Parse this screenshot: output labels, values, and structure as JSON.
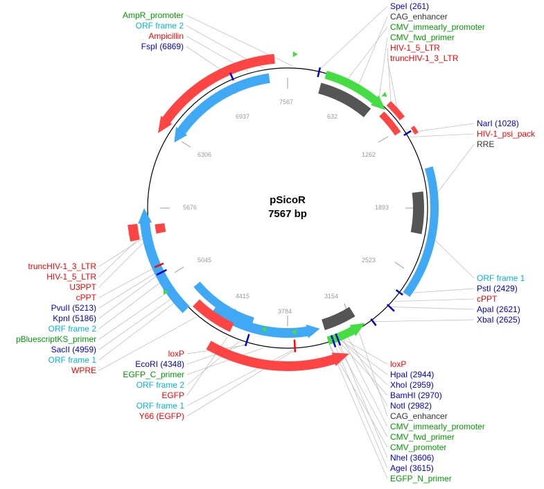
{
  "title": "pSicoR",
  "subtitle": "7567 bp",
  "colors": {
    "red": "#ff0000",
    "blue": "#0000cc",
    "green": "#009900",
    "cyan": "#00b5d8",
    "dark": "#333333",
    "feature_red": "#ff4444",
    "feature_blue": "#3fa9f5",
    "feature_green": "#44dd44",
    "feature_gray": "#555555"
  },
  "ticks": [
    "632",
    "1262",
    "1893",
    "2523",
    "3154",
    "3784",
    "4415",
    "5045",
    "5676",
    "6306",
    "6937",
    "7567"
  ],
  "labels_top_left": [
    {
      "text": "AmpR_promoter",
      "color": "green"
    },
    {
      "text": "ORF frame 2",
      "color": "cyan"
    },
    {
      "text": "Ampicillin",
      "color": "red"
    },
    {
      "text": "FspI (6869)",
      "color": "blue"
    }
  ],
  "labels_top_right": [
    {
      "text": "SpeI (261)",
      "color": "blue"
    },
    {
      "text": "CAG_enhancer",
      "color": "dark"
    },
    {
      "text": "CMV_immearly_promoter",
      "color": "green"
    },
    {
      "text": "CMV_fwd_primer",
      "color": "green"
    },
    {
      "text": "HIV-1_5_LTR",
      "color": "red"
    },
    {
      "text": "truncHIV-1_3_LTR",
      "color": "red"
    }
  ],
  "labels_right_mid": [
    {
      "text": "NarI (1028)",
      "color": "blue"
    },
    {
      "text": "HIV-1_psi_pack",
      "color": "red"
    },
    {
      "text": "RRE",
      "color": "dark"
    }
  ],
  "labels_right_low": [
    {
      "text": "ORF frame 1",
      "color": "cyan"
    },
    {
      "text": "PstI (2429)",
      "color": "blue"
    },
    {
      "text": "cPPT",
      "color": "red"
    },
    {
      "text": "ApaI (2621)",
      "color": "blue"
    },
    {
      "text": "XbaI (2625)",
      "color": "blue"
    }
  ],
  "labels_left": [
    {
      "text": "truncHIV-1_3_LTR",
      "color": "red"
    },
    {
      "text": "HIV-1_5_LTR",
      "color": "red"
    },
    {
      "text": "U3PPT",
      "color": "red"
    },
    {
      "text": "cPPT",
      "color": "red"
    },
    {
      "text": "PvuII (5213)",
      "color": "blue"
    },
    {
      "text": "KpnI (5186)",
      "color": "blue"
    },
    {
      "text": "ORF frame 2",
      "color": "cyan"
    },
    {
      "text": "pBluescriptKS_primer",
      "color": "green"
    },
    {
      "text": "SacII (4959)",
      "color": "blue"
    },
    {
      "text": "ORF frame 1",
      "color": "cyan"
    },
    {
      "text": "WPRE",
      "color": "red"
    }
  ],
  "labels_bottom_left": [
    {
      "text": "loxP",
      "color": "red"
    },
    {
      "text": "EcoRI (4348)",
      "color": "blue"
    },
    {
      "text": "EGFP_C_primer",
      "color": "green"
    },
    {
      "text": "ORF frame 2",
      "color": "cyan"
    },
    {
      "text": "EGFP",
      "color": "red"
    },
    {
      "text": "ORF frame 1",
      "color": "cyan"
    },
    {
      "text": "Y66 (EGFP)",
      "color": "red"
    }
  ],
  "labels_bottom_right": [
    {
      "text": "loxP",
      "color": "red"
    },
    {
      "text": "HpaI (2944)",
      "color": "blue"
    },
    {
      "text": "XhoI (2959)",
      "color": "blue"
    },
    {
      "text": "BamHI (2970)",
      "color": "blue"
    },
    {
      "text": "NotI (2982)",
      "color": "blue"
    },
    {
      "text": "CAG_enhancer",
      "color": "dark"
    },
    {
      "text": "CMV_immearly_promoter",
      "color": "green"
    },
    {
      "text": "CMV_fwd_primer",
      "color": "green"
    },
    {
      "text": "CMV_promoter",
      "color": "green"
    },
    {
      "text": "NheI (3606)",
      "color": "blue"
    },
    {
      "text": "AgeI (3615)",
      "color": "blue"
    },
    {
      "text": "EGFP_N_primer",
      "color": "green"
    }
  ]
}
